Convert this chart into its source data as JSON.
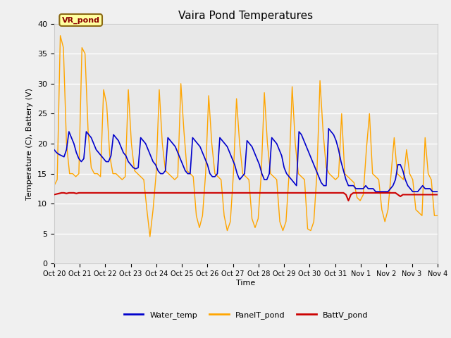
{
  "title": "Vaira Pond Temperatures",
  "xlabel": "Time",
  "ylabel": "Temperature (C), Battery (V)",
  "ylim": [
    0,
    40
  ],
  "fig_bg_color": "#f0f0f0",
  "plot_bg_color": "#e8e8e8",
  "annotation_text": "VR_pond",
  "legend_labels": [
    "Water_temp",
    "PanelT_pond",
    "BattV_pond"
  ],
  "line_colors": [
    "#0000cc",
    "#ffa500",
    "#cc0000"
  ],
  "xtick_labels": [
    "Oct 20",
    "Oct 21",
    "Oct 22",
    "Oct 23",
    "Oct 24",
    "Oct 25",
    "Oct 26",
    "Oct 27",
    "Oct 28",
    "Oct 29",
    "Oct 30",
    "Oct 31",
    "Nov 1",
    "Nov 2",
    "Nov 3",
    "Nov 4"
  ],
  "water_temp": [
    19.0,
    18.5,
    18.2,
    18.0,
    17.8,
    19.0,
    22.0,
    21.0,
    20.0,
    18.5,
    17.5,
    17.0,
    17.5,
    22.0,
    21.5,
    21.0,
    20.0,
    19.0,
    18.5,
    18.0,
    17.5,
    17.0,
    17.0,
    18.0,
    21.5,
    21.0,
    20.5,
    19.5,
    18.5,
    18.0,
    17.0,
    16.5,
    16.0,
    15.8,
    16.0,
    21.0,
    20.5,
    20.0,
    19.0,
    18.0,
    17.0,
    16.5,
    15.5,
    15.0,
    15.0,
    15.5,
    21.0,
    20.5,
    20.0,
    19.5,
    18.5,
    17.5,
    16.5,
    15.5,
    15.0,
    15.0,
    21.0,
    20.5,
    20.0,
    19.5,
    18.5,
    17.5,
    16.5,
    15.0,
    14.5,
    14.5,
    15.0,
    21.0,
    20.5,
    20.0,
    19.5,
    18.5,
    17.5,
    16.5,
    15.0,
    14.0,
    14.5,
    15.0,
    20.5,
    20.0,
    19.5,
    18.5,
    17.5,
    16.5,
    15.0,
    14.0,
    14.0,
    15.0,
    21.0,
    20.5,
    20.0,
    19.0,
    18.0,
    16.0,
    15.0,
    14.5,
    14.0,
    13.5,
    13.0,
    22.0,
    21.5,
    20.5,
    19.5,
    18.5,
    17.5,
    16.5,
    15.5,
    14.5,
    13.5,
    13.0,
    13.0,
    22.5,
    22.0,
    21.5,
    20.5,
    19.0,
    17.0,
    15.5,
    14.0,
    13.0,
    13.0,
    13.0,
    12.5,
    12.5,
    12.5,
    12.5,
    13.0,
    12.5,
    12.5,
    12.5,
    12.0,
    12.0,
    12.0,
    12.0,
    12.0,
    12.0,
    12.5,
    13.0,
    14.0,
    16.5,
    16.5,
    15.5,
    14.0,
    13.0,
    12.5,
    12.0,
    12.0,
    12.0,
    12.5,
    13.0,
    12.5,
    12.5,
    12.5,
    12.0,
    12.0,
    12.0
  ],
  "panel_temp": [
    13.0,
    14.0,
    38.0,
    36.0,
    20.0,
    15.0,
    15.0,
    14.5,
    15.0,
    36.0,
    35.0,
    22.0,
    16.0,
    15.0,
    15.0,
    14.5,
    29.0,
    26.5,
    18.0,
    15.0,
    15.0,
    14.5,
    14.0,
    14.5,
    29.0,
    20.0,
    15.5,
    15.0,
    14.5,
    14.0,
    9.0,
    4.5,
    9.0,
    15.0,
    29.0,
    20.0,
    15.5,
    15.0,
    14.5,
    14.0,
    14.5,
    30.0,
    22.0,
    15.5,
    15.0,
    14.5,
    8.0,
    6.0,
    8.0,
    15.0,
    28.0,
    20.0,
    15.0,
    14.5,
    14.0,
    8.0,
    5.5,
    7.0,
    15.0,
    27.5,
    20.0,
    15.0,
    14.5,
    14.0,
    7.5,
    6.0,
    7.5,
    15.0,
    28.5,
    20.0,
    15.0,
    14.5,
    14.0,
    7.0,
    5.5,
    7.0,
    15.0,
    29.5,
    20.0,
    15.0,
    14.5,
    14.0,
    5.8,
    5.5,
    7.0,
    15.0,
    30.5,
    22.0,
    16.0,
    15.0,
    14.5,
    14.0,
    14.5,
    25.0,
    15.0,
    14.5,
    14.0,
    13.5,
    11.0,
    10.5,
    11.5,
    19.0,
    25.0,
    15.0,
    14.5,
    14.0,
    9.0,
    7.0,
    9.0,
    15.0,
    21.0,
    15.0,
    14.5,
    14.0,
    19.0,
    15.0,
    14.0,
    9.0,
    8.5,
    8.0,
    21.0,
    15.0,
    14.0,
    8.0,
    8.0
  ],
  "batt_v": [
    11.5,
    11.6,
    11.7,
    11.8,
    11.8,
    11.7,
    11.8,
    11.8,
    11.8,
    11.7,
    11.8,
    11.8,
    11.8,
    11.8,
    11.8,
    11.8,
    11.8,
    11.8,
    11.8,
    11.8,
    11.8,
    11.8,
    11.8,
    11.8,
    11.8,
    11.8,
    11.8,
    11.8,
    11.8,
    11.8,
    11.8,
    11.8,
    11.8,
    11.8,
    11.8,
    11.8,
    11.8,
    11.8,
    11.8,
    11.8,
    11.8,
    11.8,
    11.8,
    11.8,
    11.8,
    11.8,
    11.8,
    11.8,
    11.8,
    11.8,
    11.8,
    11.8,
    11.8,
    11.8,
    11.8,
    11.8,
    11.8,
    11.8,
    11.8,
    11.8,
    11.8,
    11.8,
    11.8,
    11.8,
    11.8,
    11.8,
    11.8,
    11.8,
    11.8,
    11.8,
    11.8,
    11.8,
    11.8,
    11.8,
    11.8,
    11.8,
    11.8,
    11.8,
    11.8,
    11.8,
    11.8,
    11.8,
    11.8,
    11.8,
    11.8,
    11.8,
    11.8,
    11.8,
    11.8,
    11.8,
    11.8,
    11.8,
    11.8,
    11.8,
    11.8,
    11.8,
    11.8,
    11.8,
    11.8,
    11.8,
    11.8,
    11.8,
    11.8,
    11.8,
    11.8,
    11.8,
    11.8,
    11.8,
    11.8,
    11.8,
    11.8,
    11.8,
    11.8,
    11.8,
    11.8,
    11.8,
    11.8,
    11.8,
    11.5,
    10.5,
    11.5,
    11.8,
    11.8,
    11.8,
    11.8,
    11.8,
    11.8,
    11.8,
    11.8,
    11.8,
    11.8,
    11.8,
    11.8,
    11.8,
    11.8,
    11.8,
    11.8,
    11.8,
    11.8,
    11.5,
    11.2,
    11.5,
    11.5,
    11.5,
    11.5,
    11.5,
    11.5,
    11.5,
    11.5,
    11.5,
    11.5,
    11.5,
    11.5,
    11.5,
    11.5,
    11.5
  ]
}
